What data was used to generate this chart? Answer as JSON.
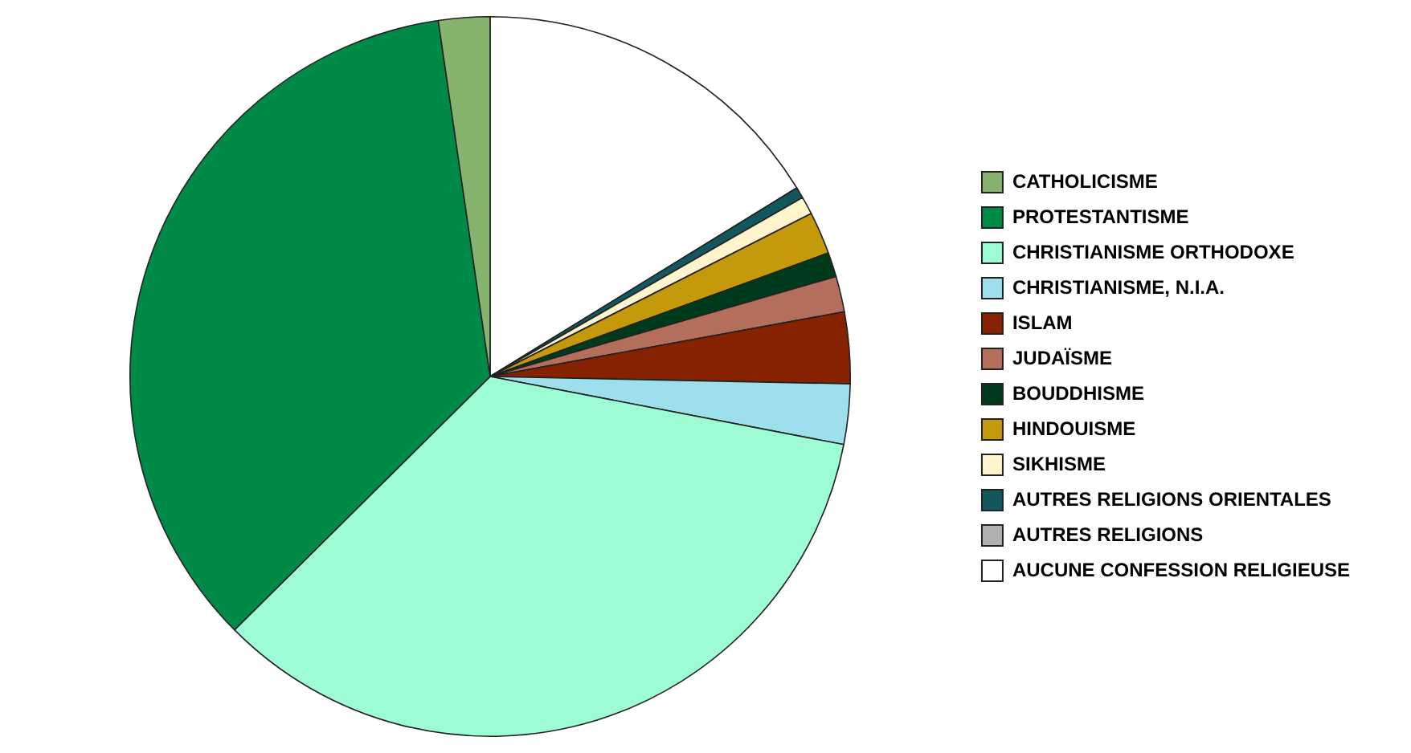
{
  "chart_data": {
    "type": "pie",
    "categories": [
      "CATHOLICISME",
      "PROTESTANTISME",
      "CHRISTIANISME ORTHODOXE",
      "CHRISTIANISME, N.I.A.",
      "ISLAM",
      "JUDAÏSME",
      "BOUDDHISME",
      "HINDOUISME",
      "SIKHISME",
      "AUTRES RELIGIONS ORIENTALES",
      "AUTRES RELIGIONS",
      "AUCUNE CONFESSION RELIGIEUSE"
    ],
    "values": [
      2.3,
      35.1,
      34.5,
      2.7,
      3.2,
      1.6,
      1.1,
      1.9,
      0.8,
      0.5,
      null,
      16.2
    ],
    "colors": [
      "#86b46e",
      "#008a47",
      "#9dfcd4",
      "#9de0ec",
      "#862200",
      "#b46e5c",
      "#003a1c",
      "#c49a0c",
      "#fff4cc",
      "#12565e",
      "#b0b0b0",
      "#ffffff"
    ],
    "legend": "right"
  }
}
